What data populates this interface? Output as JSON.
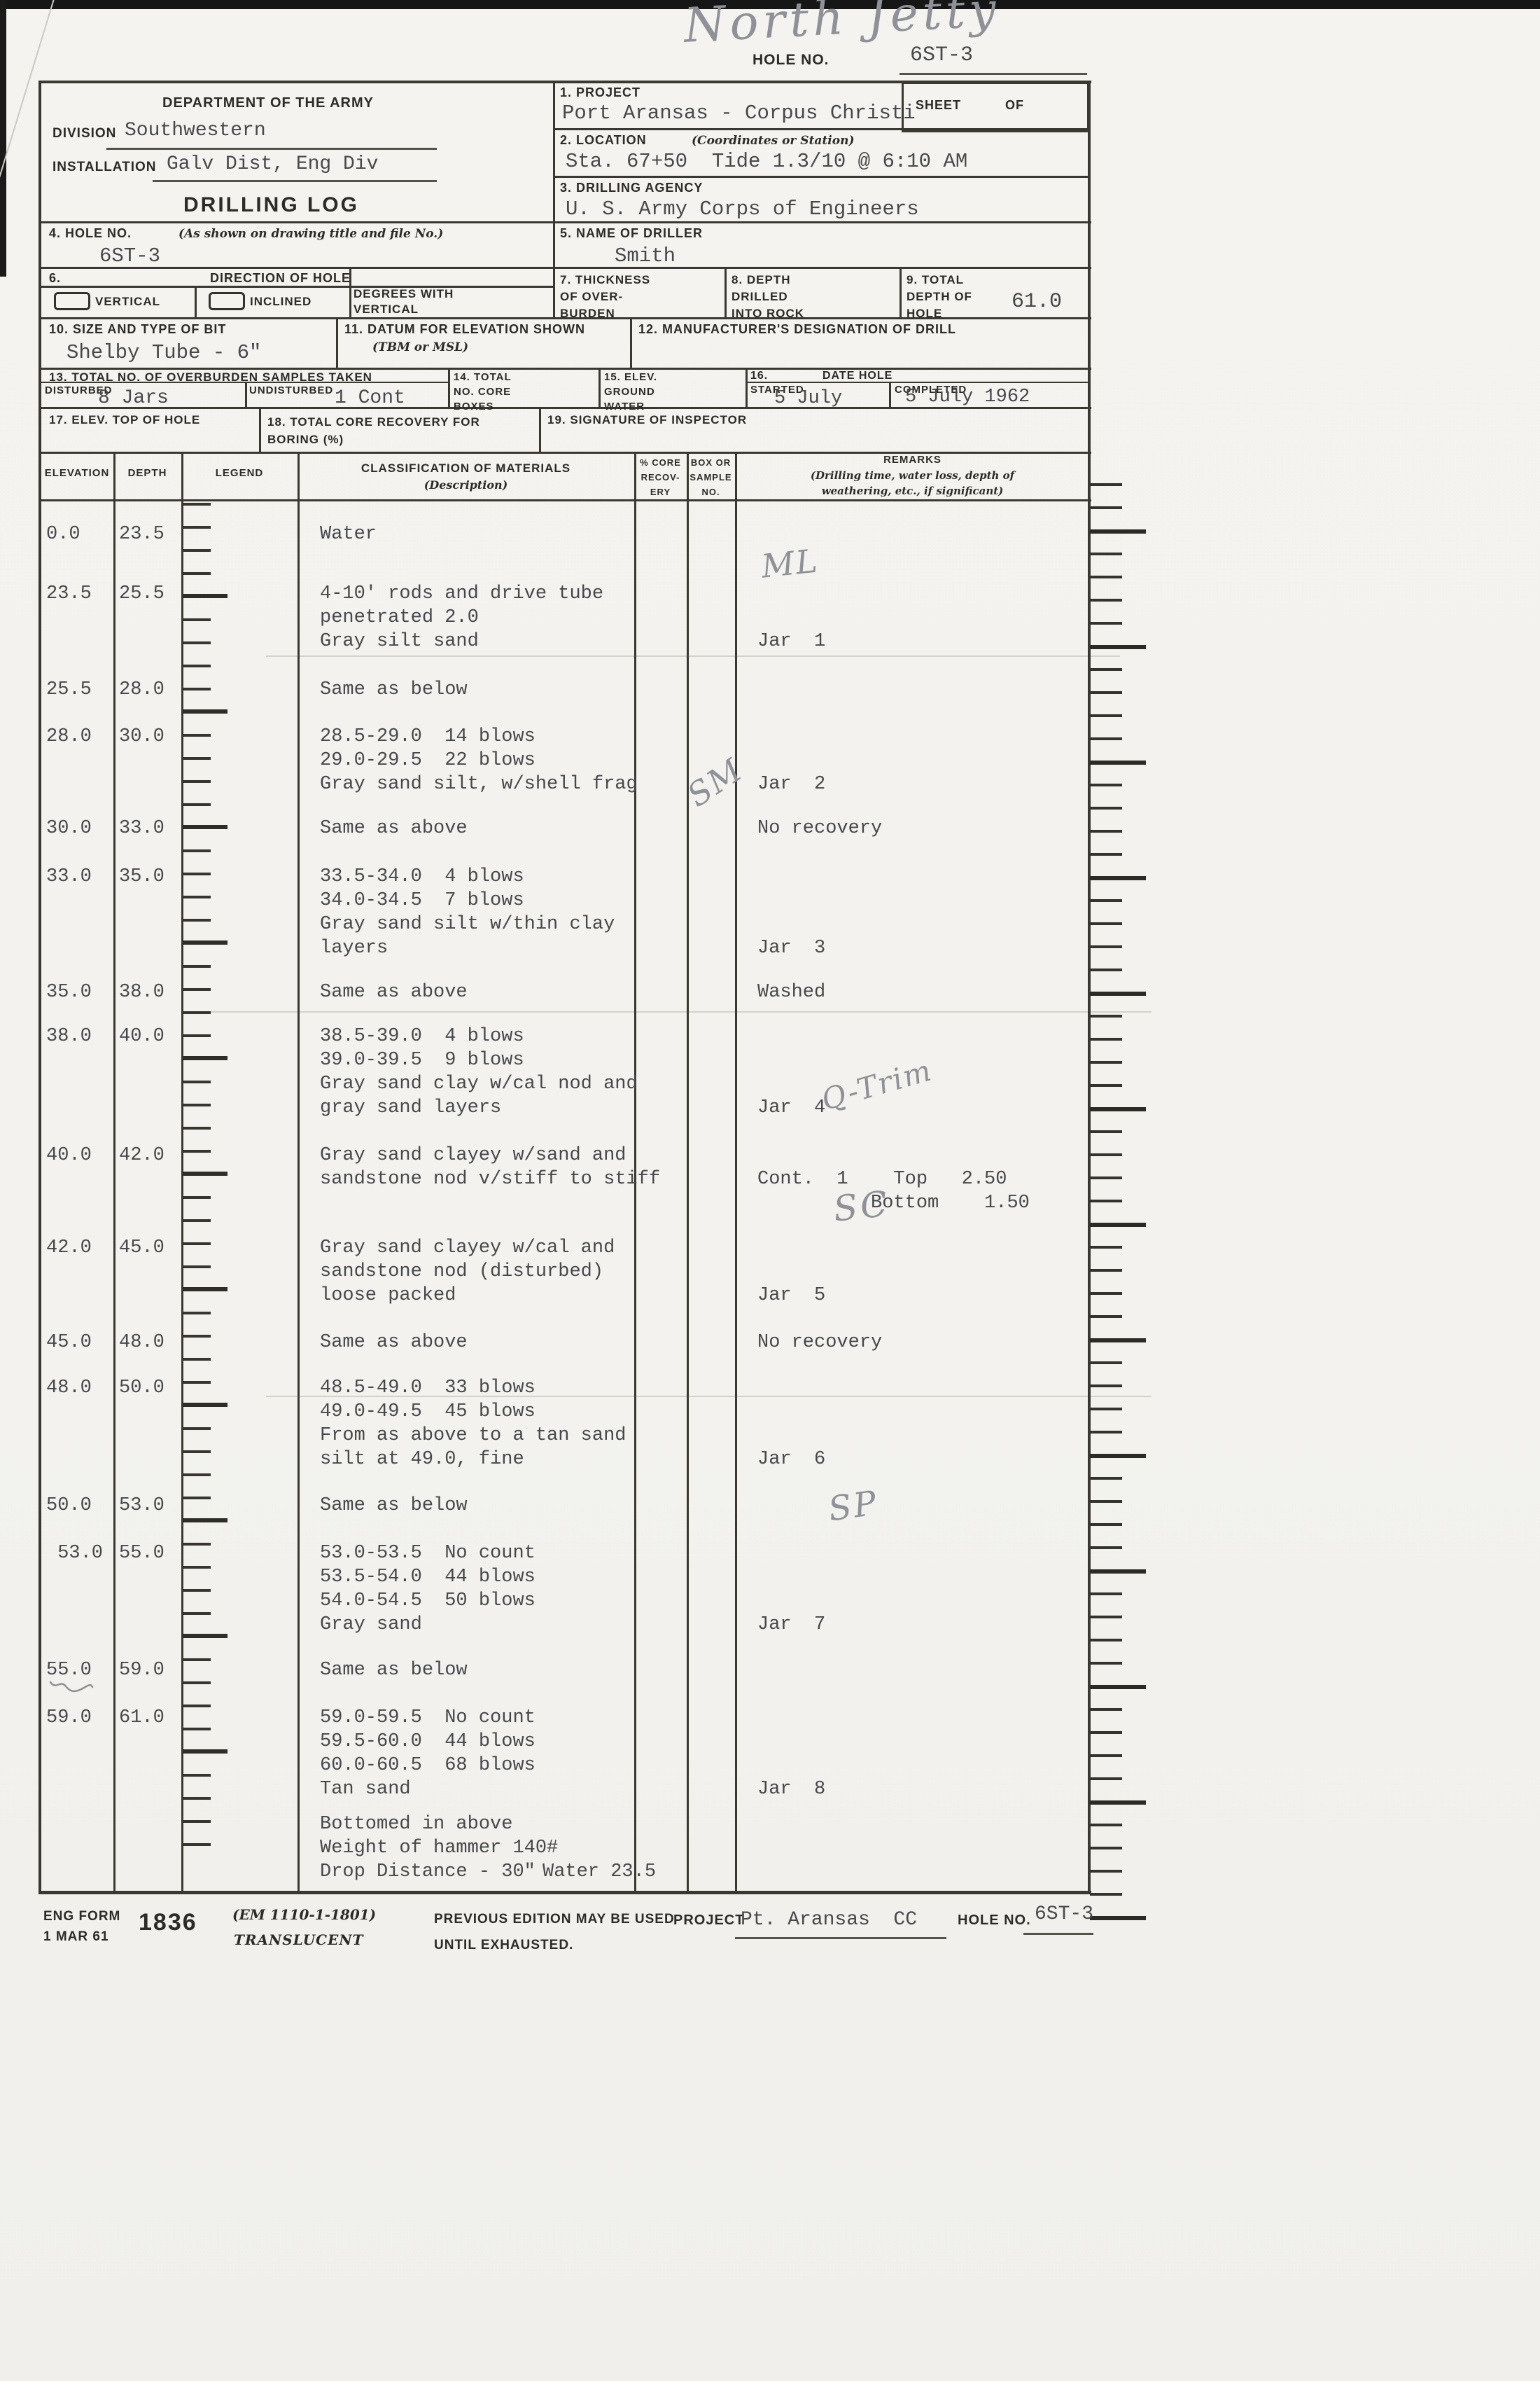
{
  "colors": {
    "paper": "#f3f2ee",
    "ink": "#3a3831",
    "typewriter": "#46484c",
    "pencil": "#8f9198"
  },
  "page": {
    "hole_no_label": "HOLE NO.",
    "hole_no_value": "6ST-3"
  },
  "header": {
    "department": "DEPARTMENT OF THE ARMY",
    "division_label": "DIVISION",
    "division_value": "Southwestern",
    "installation_label": "INSTALLATION",
    "installation_value": "Galv Dist, Eng Div",
    "form_title": "DRILLING LOG",
    "project_label": "1. PROJECT",
    "project_value": "Port Aransas - Corpus Christi",
    "sheet_label": "SHEET",
    "of_label": "OF",
    "location_label": "2. LOCATION",
    "location_note": "(Coordinates or Station)",
    "location_value": "Sta. 67+50  Tide 1.3/10 @ 6:10 AM",
    "agency_label": "3. DRILLING AGENCY",
    "agency_value": "U. S. Army Corps of Engineers",
    "hole_label": "4. HOLE NO.",
    "hole_note": "(As shown on drawing title and file No.)",
    "hole_value": "6ST-3",
    "driller_label": "5. NAME OF DRILLER",
    "driller_value": "Smith",
    "direction_num": "6.",
    "direction_label": "DIRECTION OF HOLE",
    "vertical_label": "VERTICAL",
    "inclined_label": "INCLINED",
    "degrees_lines": [
      "DEGREES WITH",
      "VERTICAL"
    ],
    "thickness_lines": [
      "7. THICKNESS",
      "OF OVER-",
      "BURDEN"
    ],
    "depth_rock_lines": [
      "8. DEPTH",
      "DRILLED",
      "INTO ROCK"
    ],
    "total_depth_lines": [
      "9. TOTAL",
      "DEPTH OF",
      "HOLE"
    ],
    "total_depth_value": "61.0",
    "bit_label": "10. SIZE AND TYPE OF BIT",
    "bit_value": "Shelby Tube - 6\"",
    "datum_label": "11. DATUM FOR ELEVATION SHOWN",
    "datum_note": "(TBM or MSL)",
    "mfr_label": "12. MANUFACTURER'S DESIGNATION OF DRILL",
    "samples_label": "13. TOTAL NO. OF OVERBURDEN SAMPLES TAKEN",
    "disturbed_label": "DISTURBED",
    "disturbed_value": "8 Jars",
    "undisturbed_label": "UNDISTURBED",
    "undisturbed_value": "1 Cont",
    "core_boxes_lines": [
      "14. TOTAL",
      "NO. CORE",
      "BOXES"
    ],
    "elev_gw_lines": [
      "15. ELEV.",
      "GROUND",
      "WATER"
    ],
    "date_num": "16.",
    "date_label": "DATE HOLE",
    "started_label": "STARTED",
    "started_value": "5 July",
    "completed_label": "COMPLETED",
    "completed_value": "5 July 1962",
    "elev_top_label": "17. ELEV. TOP OF HOLE",
    "core_recovery_lines": [
      "18. TOTAL CORE RECOVERY FOR",
      "BORING (%)"
    ],
    "inspector_label": "19. SIGNATURE OF INSPECTOR"
  },
  "columns": {
    "elevation": "ELEVATION",
    "depth": "DEPTH",
    "legend": "LEGEND",
    "classification": "CLASSIFICATION OF MATERIALS",
    "classification_note": "(Description)",
    "core_lines": [
      "% CORE",
      "RECOV-",
      "ERY"
    ],
    "box_lines": [
      "BOX OR",
      "SAMPLE",
      "NO."
    ],
    "remarks": "REMARKS",
    "remarks_note_lines": [
      "(Drilling time, water loss, depth of",
      "weathering, etc., if significant)"
    ]
  },
  "log": {
    "rows": [
      {
        "elevation": "0.0",
        "depth": "23.5",
        "description": [
          "Water"
        ],
        "remarks": []
      },
      {
        "elevation": "23.5",
        "depth": "25.5",
        "description": [
          "4-10' rods and drive tube",
          "penetrated 2.0",
          "Gray silt sand"
        ],
        "remarks": [
          {
            "line": 2,
            "text": "Jar  1"
          }
        ]
      },
      {
        "elevation": "25.5",
        "depth": "28.0",
        "description": [
          "Same as below"
        ],
        "remarks": []
      },
      {
        "elevation": "28.0",
        "depth": "30.0",
        "description": [
          "28.5-29.0  14 blows",
          "29.0-29.5  22 blows",
          "Gray sand silt, w/shell frag"
        ],
        "remarks": [
          {
            "line": 2,
            "text": "Jar  2"
          }
        ]
      },
      {
        "elevation": "30.0",
        "depth": "33.0",
        "description": [
          "Same as above"
        ],
        "remarks": [
          {
            "line": 0,
            "text": "No recovery"
          }
        ]
      },
      {
        "elevation": "33.0",
        "depth": "35.0",
        "description": [
          "33.5-34.0  4 blows",
          "34.0-34.5  7 blows",
          "Gray sand silt w/thin clay",
          "layers"
        ],
        "remarks": [
          {
            "line": 3,
            "text": "Jar  3"
          }
        ]
      },
      {
        "elevation": "35.0",
        "depth": "38.0",
        "description": [
          "Same as above"
        ],
        "remarks": [
          {
            "line": 0,
            "text": "Washed"
          }
        ]
      },
      {
        "elevation": "38.0",
        "depth": "40.0",
        "description": [
          "38.5-39.0  4 blows",
          "39.0-39.5  9 blows",
          "Gray sand clay w/cal nod and",
          "gray sand layers"
        ],
        "remarks": [
          {
            "line": 3,
            "text": "Jar  4"
          }
        ]
      },
      {
        "elevation": "40.0",
        "depth": "42.0",
        "description": [
          "Gray sand clayey w/sand and",
          "sandstone nod v/stiff to stiff"
        ],
        "remarks": [
          {
            "line": 1,
            "text": "Cont.  1    Top   2.50"
          },
          {
            "line": 2,
            "text": "          Bottom    1.50"
          }
        ]
      },
      {
        "elevation": "42.0",
        "depth": "45.0",
        "description": [
          "Gray sand clayey w/cal and",
          "sandstone nod (disturbed)",
          "loose packed"
        ],
        "remarks": [
          {
            "line": 2,
            "text": "Jar  5"
          }
        ]
      },
      {
        "elevation": "45.0",
        "depth": "48.0",
        "description": [
          "Same as above"
        ],
        "remarks": [
          {
            "line": 0,
            "text": "No recovery"
          }
        ]
      },
      {
        "elevation": "48.0",
        "depth": "50.0",
        "description": [
          "48.5-49.0  33 blows",
          "49.0-49.5  45 blows",
          "From as above to a tan sand",
          "silt at 49.0, fine"
        ],
        "remarks": [
          {
            "line": 3,
            "text": "Jar  6"
          }
        ]
      },
      {
        "elevation": "50.0",
        "depth": "53.0",
        "description": [
          "Same as below"
        ],
        "remarks": []
      },
      {
        "elevation": " 53.0",
        "depth": "55.0",
        "description": [
          "53.0-53.5  No count",
          "53.5-54.0  44 blows",
          "54.0-54.5  50 blows",
          "Gray sand"
        ],
        "remarks": [
          {
            "line": 3,
            "text": "Jar  7"
          }
        ]
      },
      {
        "elevation": "55.0",
        "depth": "59.0",
        "description": [
          "Same as below"
        ],
        "remarks": []
      },
      {
        "elevation": "59.0",
        "depth": "61.0",
        "description": [
          "59.0-59.5  No count",
          "59.5-60.0  44 blows",
          "60.0-60.5  68 blows",
          "Tan sand"
        ],
        "remarks": [
          {
            "line": 3,
            "text": "Jar  8"
          }
        ]
      }
    ],
    "endnote": {
      "lines": [
        "Bottomed in above",
        "Weight of hammer 140#",
        "Drop Distance - 30\""
      ],
      "water": "Water 23.5"
    }
  },
  "annotations": [
    {
      "id": "north-jetty",
      "text": "North Jetty"
    },
    {
      "id": "ml",
      "text": "ML"
    },
    {
      "id": "sm",
      "text": "SM"
    },
    {
      "id": "q-trim",
      "text": "Q-Trim"
    },
    {
      "id": "sc",
      "text": "SC"
    },
    {
      "id": "sp",
      "text": "SP"
    }
  ],
  "footer": {
    "eng_form_lines": [
      "ENG FORM",
      "1 MAR 61"
    ],
    "form_number": "1836",
    "em_note": "(EM 1110-1-1801)",
    "translucent": "TRANSLUCENT",
    "prev_edition_lines": [
      "PREVIOUS EDITION MAY BE USED",
      "UNTIL EXHAUSTED."
    ],
    "project_label": "PROJECT",
    "project_value": "Pt. Aransas  CC",
    "hole_label": "HOLE NO.",
    "hole_value": "6ST-3"
  }
}
